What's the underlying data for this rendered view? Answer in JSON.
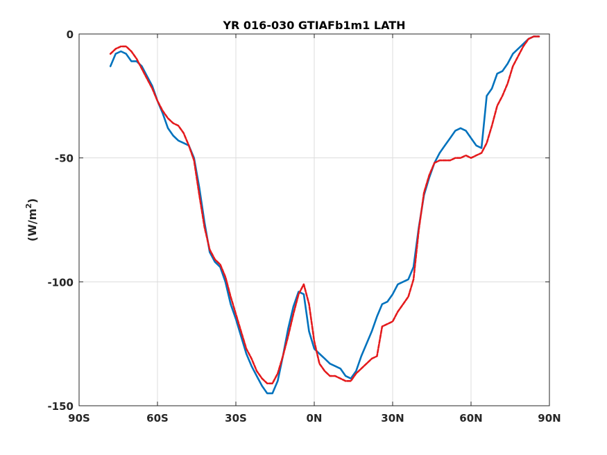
{
  "chart_data": {
    "type": "line",
    "title": "YR 016-030 GTIAFb1m1 LATH",
    "xlabel": "",
    "ylabel": "(W/m",
    "ylabel_sup": "2",
    "ylabel_close": ")",
    "xlim": [
      -90,
      90
    ],
    "ylim": [
      -150,
      0
    ],
    "grid": true,
    "legend": "none",
    "x_ticks": [
      -90,
      -60,
      -30,
      0,
      30,
      60,
      90
    ],
    "x_tick_labels": [
      "90S",
      "60S",
      "30S",
      "0N",
      "30N",
      "60N",
      "90N"
    ],
    "y_ticks": [
      0,
      -50,
      -100,
      -150
    ],
    "y_tick_labels": [
      "0",
      "-50",
      "-100",
      "-150"
    ],
    "series": [
      {
        "color": "#0072BD",
        "style": "solid",
        "x": [
          -78,
          -76,
          -74,
          -72,
          -70,
          -68,
          -66,
          -64,
          -62,
          -60,
          -58,
          -56,
          -54,
          -52,
          -50,
          -48,
          -46,
          -44,
          -42,
          -40,
          -38,
          -36,
          -34,
          -32,
          -30,
          -28,
          -26,
          -24,
          -22,
          -20,
          -18,
          -16,
          -14,
          -12,
          -10,
          -8,
          -6,
          -4,
          -2,
          0,
          2,
          4,
          6,
          8,
          10,
          12,
          14,
          16,
          18,
          20,
          22,
          24,
          26,
          28,
          30,
          32,
          34,
          36,
          38,
          40,
          42,
          44,
          46,
          48,
          50,
          52,
          54,
          56,
          58,
          60,
          62,
          64,
          66,
          68,
          70,
          72,
          74,
          76,
          78,
          80,
          82,
          84,
          86
        ],
        "values": [
          -13,
          -8,
          -7,
          -8,
          -11,
          -11,
          -13,
          -17,
          -21,
          -27,
          -32,
          -38,
          -41,
          -43,
          -44,
          -45,
          -50,
          -62,
          -76,
          -88,
          -92,
          -94,
          -100,
          -109,
          -115,
          -122,
          -129,
          -134,
          -138,
          -142,
          -145,
          -145,
          -140,
          -130,
          -119,
          -110,
          -104,
          -105,
          -120,
          -127,
          -129,
          -131,
          -133,
          -134,
          -135,
          -138,
          -139,
          -136,
          -130,
          -125,
          -120,
          -114,
          -109,
          -108,
          -105,
          -101,
          -100,
          -99,
          -94,
          -78,
          -65,
          -58,
          -52,
          -48,
          -45,
          -42,
          -39,
          -38,
          -39,
          -42,
          -45,
          -46,
          -25,
          -22,
          -16,
          -15,
          -12,
          -8,
          -6,
          -4,
          -2,
          -1,
          -1
        ]
      },
      {
        "color": "#E41A1C",
        "style": "dashed",
        "x": [
          -78,
          -76,
          -74,
          -72,
          -70,
          -68,
          -66,
          -64,
          -62,
          -60,
          -58,
          -56,
          -54,
          -52,
          -50,
          -48,
          -46,
          -44,
          -42,
          -40,
          -38,
          -36,
          -34,
          -32,
          -30,
          -28,
          -26,
          -24,
          -22,
          -20,
          -18,
          -16,
          -14,
          -12,
          -10,
          -8,
          -6,
          -4,
          -2,
          0,
          2,
          4,
          6,
          8,
          10,
          12,
          14,
          16,
          18,
          20,
          22,
          24,
          26,
          28,
          30,
          32,
          34,
          36,
          38,
          40,
          42,
          44,
          46,
          48,
          50,
          52,
          54,
          56,
          58,
          60,
          62,
          64,
          66,
          68,
          70,
          72,
          74,
          76,
          78,
          80,
          82,
          84,
          86
        ],
        "values": [
          -8,
          -6,
          -5,
          -5,
          -7,
          -10,
          -14,
          -18,
          -22,
          -27,
          -31,
          -34,
          -36,
          -37,
          -40,
          -45,
          -51,
          -65,
          -78,
          -87,
          -91,
          -93,
          -98,
          -106,
          -113,
          -120,
          -127,
          -131,
          -136,
          -139,
          -141,
          -141,
          -137,
          -130,
          -122,
          -113,
          -105,
          -101,
          -109,
          -124,
          -133,
          -136,
          -138,
          -138,
          -139,
          -140,
          -140,
          -137,
          -135,
          -133,
          -131,
          -130,
          -118,
          -117,
          -116,
          -112,
          -109,
          -106,
          -99,
          -79,
          -64,
          -57,
          -52,
          -51,
          -51,
          -51,
          -50,
          -50,
          -49,
          -50,
          -49,
          -48,
          -44,
          -37,
          -29,
          -25,
          -20,
          -13,
          -9,
          -5,
          -2,
          -1,
          -1
        ]
      }
    ]
  }
}
